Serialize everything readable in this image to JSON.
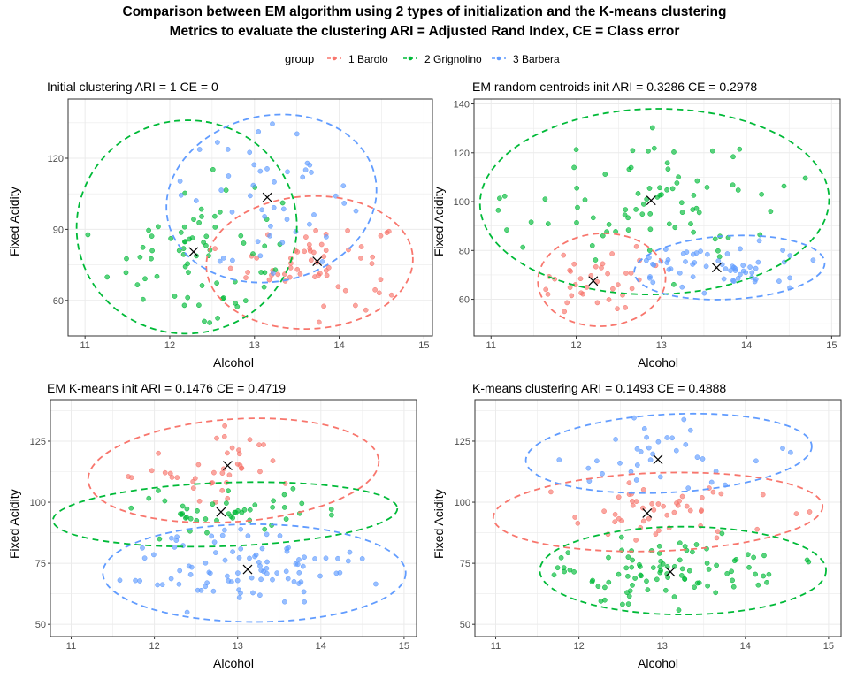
{
  "title_line1": "Comparison between EM algorithm using 2 types of initialization and the K-means clustering",
  "title_line2": "Metrics to evaluate the clustering ARI = Adjusted Rand Index, CE = Class error",
  "legend": {
    "title": "group",
    "items": [
      {
        "label": "1 Barolo",
        "color": "#F8766D"
      },
      {
        "label": "2 Grignolino",
        "color": "#00BA38"
      },
      {
        "label": "3 Barbera",
        "color": "#619CFF"
      }
    ]
  },
  "chart_data": [
    {
      "type": "scatter",
      "title": "Initial clustering ARI =  1  CE =  0",
      "xlabel": "Alcohol",
      "ylabel": "Fixed Acidity",
      "xlim": [
        10.8,
        15.1
      ],
      "ylim": [
        45,
        145
      ],
      "xticks": [
        11,
        12,
        13,
        14,
        15
      ],
      "yticks": [
        60,
        90,
        120
      ],
      "grid": true,
      "series": [
        {
          "name": "1 Barolo",
          "color": "#F8766D",
          "n": 59,
          "center": [
            13.74,
            76.5
          ],
          "ellipse": {
            "cx": 13.65,
            "cy": 76,
            "rx": 1.22,
            "ry": 28,
            "rot": -3
          },
          "spread": [
            0.48,
            9
          ]
        },
        {
          "name": "2 Grignolino",
          "color": "#00BA38",
          "n": 71,
          "center": [
            12.28,
            80.5
          ],
          "ellipse": {
            "cx": 12.2,
            "cy": 91,
            "rx": 1.3,
            "ry": 45,
            "rot": -6
          },
          "spread": [
            0.5,
            16
          ]
        },
        {
          "name": "3 Barbera",
          "color": "#619CFF",
          "n": 48,
          "center": [
            13.15,
            103.5
          ],
          "ellipse": {
            "cx": 13.2,
            "cy": 103,
            "rx": 1.25,
            "ry": 35,
            "rot": -12
          },
          "spread": [
            0.5,
            15
          ]
        }
      ]
    },
    {
      "type": "scatter",
      "title": "EM random centroids init ARI =  0.3286  CE =  0.2978",
      "xlabel": "Alcohol",
      "ylabel": "Fixed Acidity",
      "xlim": [
        10.8,
        15.1
      ],
      "ylim": [
        45,
        142
      ],
      "xticks": [
        11,
        12,
        13,
        14,
        15
      ],
      "yticks": [
        60,
        80,
        100,
        120,
        140
      ],
      "grid": true,
      "series": [
        {
          "name": "1 Barolo",
          "color": "#F8766D",
          "n": 38,
          "center": [
            12.2,
            67.5
          ],
          "ellipse": {
            "cx": 12.3,
            "cy": 68,
            "rx": 0.75,
            "ry": 19,
            "rot": -3
          },
          "spread": [
            0.35,
            7
          ]
        },
        {
          "name": "2 Grignolino",
          "color": "#00BA38",
          "n": 80,
          "center": [
            12.88,
            100.5
          ],
          "ellipse": {
            "cx": 12.92,
            "cy": 100,
            "rx": 2.05,
            "ry": 38,
            "rot": -1
          },
          "spread": [
            0.8,
            14
          ]
        },
        {
          "name": "3 Barbera",
          "color": "#619CFF",
          "n": 60,
          "center": [
            13.65,
            73
          ],
          "ellipse": {
            "cx": 13.8,
            "cy": 73,
            "rx": 1.12,
            "ry": 13,
            "rot": -3
          },
          "spread": [
            0.5,
            5
          ]
        }
      ]
    },
    {
      "type": "scatter",
      "title": "EM K-means init ARI =  0.1476  CE =  0.4719",
      "xlabel": "Alcohol",
      "ylabel": "Fixed Acidity",
      "xlim": [
        10.75,
        15.15
      ],
      "ylim": [
        45,
        142
      ],
      "xticks": [
        11,
        12,
        13,
        14,
        15
      ],
      "yticks": [
        50,
        75,
        100,
        125
      ],
      "grid": true,
      "series": [
        {
          "name": "1 Barolo",
          "color": "#F8766D",
          "n": 40,
          "center": [
            12.88,
            115
          ],
          "ellipse": {
            "cx": 12.95,
            "cy": 113,
            "rx": 1.75,
            "ry": 21,
            "rot": -4
          },
          "spread": [
            0.6,
            8
          ]
        },
        {
          "name": "2 Grignolino",
          "color": "#00BA38",
          "n": 45,
          "center": [
            12.8,
            96
          ],
          "ellipse": {
            "cx": 12.85,
            "cy": 95,
            "rx": 2.07,
            "ry": 13,
            "rot": -2
          },
          "spread": [
            0.6,
            5
          ]
        },
        {
          "name": "3 Barbera",
          "color": "#619CFF",
          "n": 93,
          "center": [
            13.12,
            72.5
          ],
          "ellipse": {
            "cx": 13.2,
            "cy": 71,
            "rx": 1.82,
            "ry": 20,
            "rot": 0
          },
          "spread": [
            0.7,
            8
          ]
        }
      ]
    },
    {
      "type": "scatter",
      "title": "K-means clustering ARI =  0.1493  CE =  0.4888",
      "xlabel": "Alcohol",
      "ylabel": "Fixed Acidity",
      "xlim": [
        10.75,
        15.15
      ],
      "ylim": [
        45,
        142
      ],
      "xticks": [
        11,
        12,
        13,
        14,
        15
      ],
      "yticks": [
        50,
        75,
        100,
        125
      ],
      "grid": true,
      "series": [
        {
          "name": "1 Barolo",
          "color": "#F8766D",
          "n": 50,
          "center": [
            12.82,
            95.5
          ],
          "ellipse": {
            "cx": 12.95,
            "cy": 96,
            "rx": 1.98,
            "ry": 16,
            "rot": -2
          },
          "spread": [
            0.7,
            6
          ]
        },
        {
          "name": "2 Grignolino",
          "color": "#00BA38",
          "n": 93,
          "center": [
            13.1,
            71.5
          ],
          "ellipse": {
            "cx": 13.25,
            "cy": 72,
            "rx": 1.72,
            "ry": 18,
            "rot": 0
          },
          "spread": [
            0.7,
            7
          ]
        },
        {
          "name": "3 Barbera",
          "color": "#619CFF",
          "n": 35,
          "center": [
            12.95,
            117.5
          ],
          "ellipse": {
            "cx": 13.08,
            "cy": 120,
            "rx": 1.72,
            "ry": 16,
            "rot": -3
          },
          "spread": [
            0.6,
            7
          ]
        }
      ]
    }
  ]
}
